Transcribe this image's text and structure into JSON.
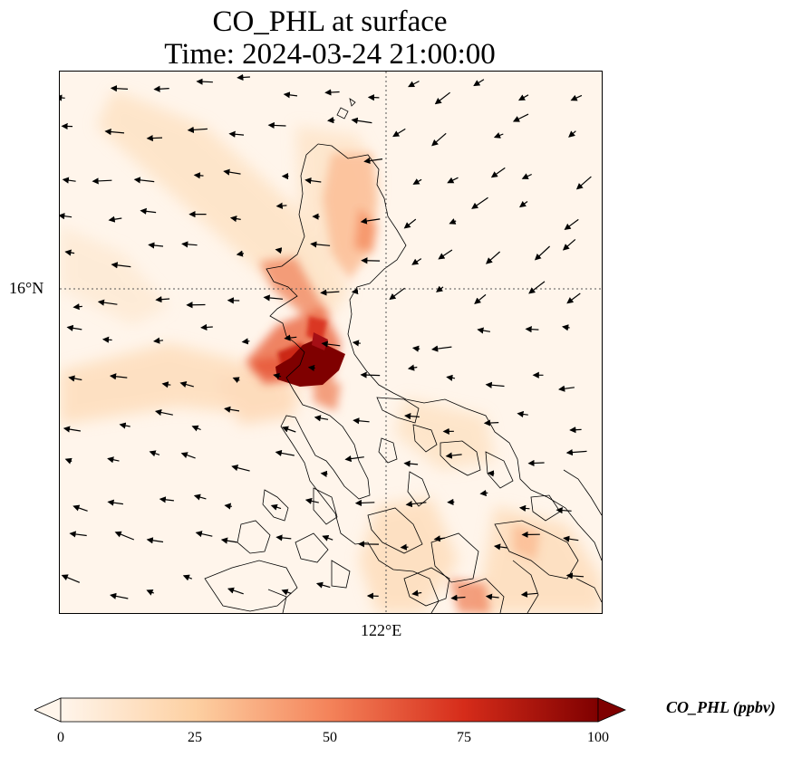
{
  "title_line1": "CO_PHL at surface",
  "title_line2": "Time: 2024-03-24 21:00:00",
  "gridlines": {
    "lat_label": "16°N",
    "lon_label": "122°E"
  },
  "colorbar": {
    "label": "CO_PHL (ppbv)",
    "ticks": [
      "0",
      "25",
      "50",
      "75",
      "100"
    ],
    "range": [
      0,
      100
    ],
    "colormap": "Oranges-Reds",
    "colors": [
      "#fff5eb",
      "#fdd0a2",
      "#f4835a",
      "#d62c1a",
      "#7f0000"
    ],
    "extend": "both"
  },
  "map": {
    "region": "Luzon, Philippines",
    "features": [
      "coastlines",
      "wind-vectors",
      "dotted-gridlines"
    ],
    "hotspot_label": "high CO over Manila area (>100 ppbv)"
  }
}
